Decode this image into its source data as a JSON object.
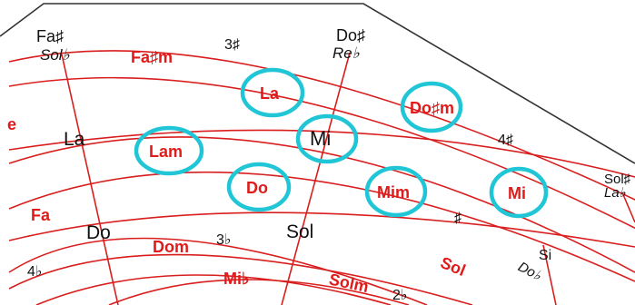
{
  "colors": {
    "line": "#d91e1e",
    "border": "#333333",
    "highlight": "#21c6d6",
    "key_text": "#e01b1b",
    "note_text": "#111111"
  },
  "notes": {
    "fa_sharp": "Fa♯",
    "sol_flat": "Sol♭",
    "do_sharp": "Do♯",
    "re_flat": "Re♭",
    "la": "La",
    "mi": "Mi",
    "do": "Do",
    "sol": "Sol",
    "sol_sharp": "Sol♯",
    "la_flat": "La♭",
    "si": "Si",
    "do_flat": "Do♭"
  },
  "keys": {
    "fa_sharp_minor": "Fa♯m",
    "la": "La",
    "do_sharp_minor": "Do♯m",
    "la_minor": "Lam",
    "do": "Do",
    "mi_minor": "Mim",
    "mi": "Mi",
    "fa": "Fa",
    "do_minor": "Dom",
    "sol_minor": "Solm",
    "sol": "Sol",
    "mi_flat": "Mi♭",
    "partial_left": "e"
  },
  "accidentals": {
    "three_sharps": "3♯",
    "four_sharps": "4♯",
    "one_sharp": "♯",
    "three_flats": "3♭",
    "four_flats": "4♭",
    "two_flats": "2♭"
  },
  "highlighted": [
    "la",
    "do_sharp_minor",
    "la_minor",
    "mi",
    "do",
    "mi_minor",
    "mi_major"
  ]
}
